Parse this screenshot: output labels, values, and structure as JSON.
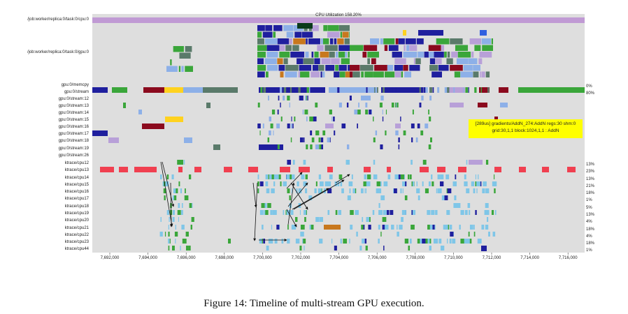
{
  "figure": {
    "caption": "Figure 14: Timeline of multi-stream GPU execution.",
    "cpu_bar_title": "CPU Utilization 158.20%"
  },
  "tooltip": {
    "line1": "[289us] gradients/AddN_274:AddN regs:30 shm:0",
    "line2": "grid:30,1,1 block:1024,1,1 : AddN"
  },
  "tracks": [
    {
      "label": "/job:worker/replica:0/task:0/cpu:0",
      "pct": ""
    },
    {
      "label": "/job:worker/replica:0/task:0/gpu:0",
      "pct": ""
    },
    {
      "label": "gpu:0/memcpy",
      "pct": "0%"
    },
    {
      "label": "gpu:0/stream",
      "pct": "80%"
    },
    {
      "label": "gpu:0/stream:12",
      "pct": ""
    },
    {
      "label": "gpu:0/stream:13",
      "pct": ""
    },
    {
      "label": "gpu:0/stream:14",
      "pct": ""
    },
    {
      "label": "gpu:0/stream:15",
      "pct": ""
    },
    {
      "label": "gpu:0/stream:16",
      "pct": ""
    },
    {
      "label": "gpu:0/stream:17",
      "pct": ""
    },
    {
      "label": "gpu:0/stream:18",
      "pct": ""
    },
    {
      "label": "gpu:0/stream:19",
      "pct": ""
    },
    {
      "label": "gpu:0/stream:26",
      "pct": ""
    },
    {
      "label": "ktrace/cpu12",
      "pct": "13%"
    },
    {
      "label": "ktrace/cpu13",
      "pct": "23%"
    },
    {
      "label": "ktrace/cpu14",
      "pct": "13%"
    },
    {
      "label": "ktrace/cpu15",
      "pct": "21%"
    },
    {
      "label": "ktrace/cpu16",
      "pct": "18%"
    },
    {
      "label": "ktrace/cpu17",
      "pct": "1%"
    },
    {
      "label": "ktrace/cpu18",
      "pct": "5%"
    },
    {
      "label": "ktrace/cpu19",
      "pct": "13%"
    },
    {
      "label": "ktrace/cpu20",
      "pct": "4%"
    },
    {
      "label": "ktrace/cpu21",
      "pct": "18%"
    },
    {
      "label": "ktrace/cpu22",
      "pct": "4%"
    },
    {
      "label": "ktrace/cpu23",
      "pct": "18%"
    },
    {
      "label": "ktrace/cpu44",
      "pct": "1%"
    }
  ],
  "x_ticks": [
    "7,692,000",
    "7,694,000",
    "7,696,000",
    "7,698,000",
    "7,700,000",
    "7,702,000",
    "7,704,000",
    "7,706,000",
    "7,708,000",
    "7,710,000",
    "7,712,000",
    "7,714,000",
    "7,716,000"
  ],
  "colors": {
    "panel": "#dedede",
    "cpu_bar": "#c09ad4",
    "navy": "#1f1f9e",
    "green": "#3aa63a",
    "lightblue": "#8db0e8",
    "sky": "#7fc6e8",
    "red": "#f04050",
    "maroon": "#8b0a1e",
    "yellow": "#ffd21f",
    "slate": "#5a7a6a",
    "lavender": "#b8a0d8",
    "orange": "#c8781e"
  }
}
